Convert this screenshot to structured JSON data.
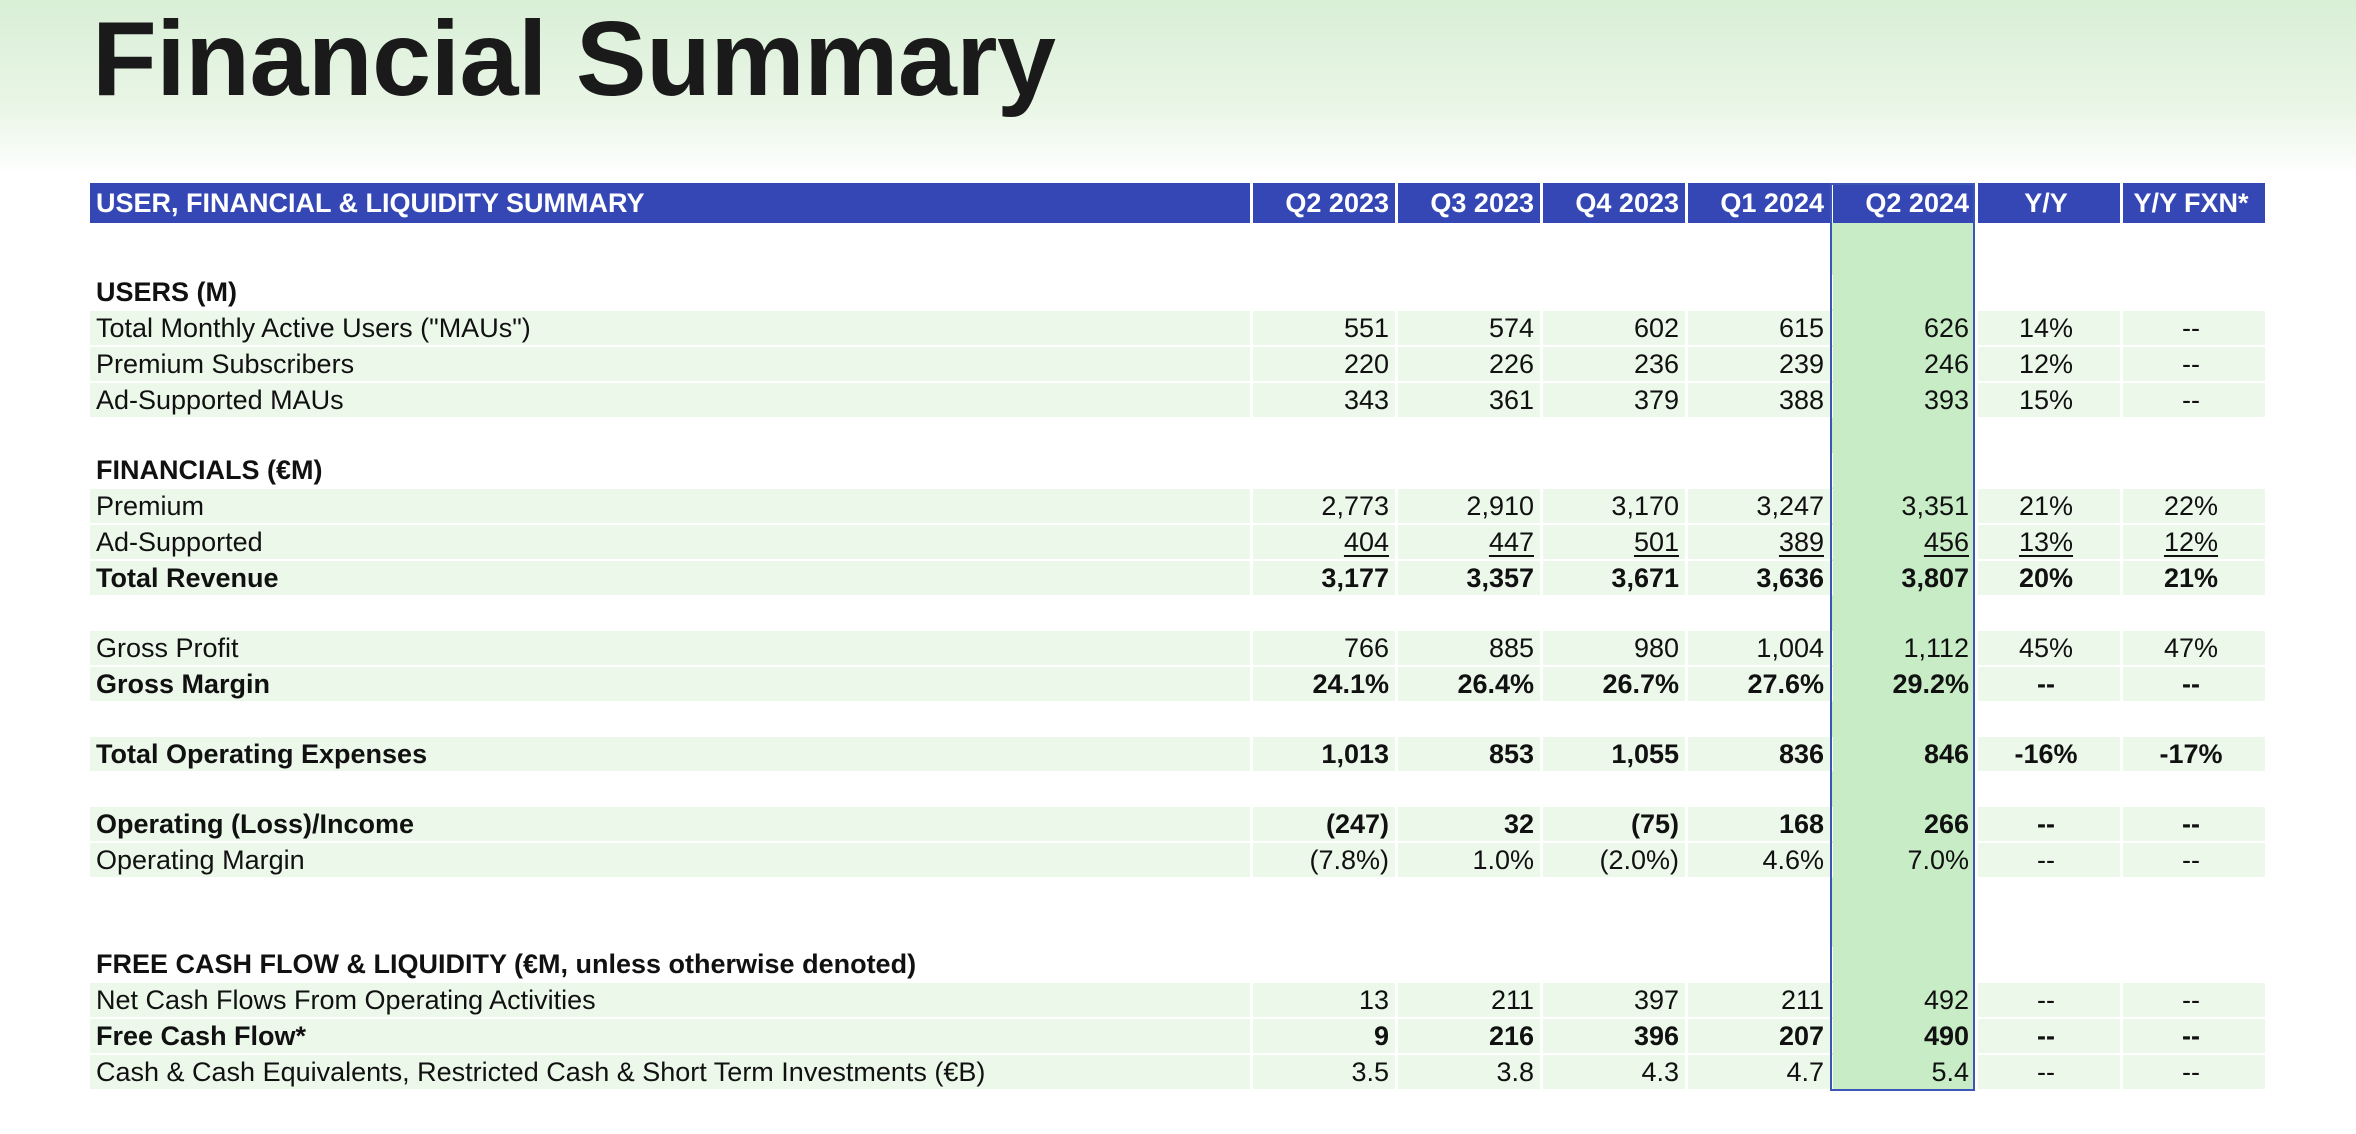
{
  "page": {
    "title": "Financial Summary"
  },
  "table": {
    "header": {
      "label": "USER, FINANCIAL & LIQUIDITY SUMMARY",
      "columns": [
        "Q2 2023",
        "Q3 2023",
        "Q4 2023",
        "Q1 2024",
        "Q2 2024",
        "Y/Y",
        "Y/Y FXN*"
      ]
    },
    "highlight_color": "#c8ecc6",
    "header_color": "#3447b5",
    "sections": [
      {
        "title": "USERS (M)",
        "rows": [
          {
            "label": "Total Monthly Active Users (\"MAUs\")",
            "values": [
              "551",
              "574",
              "602",
              "615",
              "626",
              "14%",
              "--"
            ]
          },
          {
            "label": "Premium Subscribers",
            "values": [
              "220",
              "226",
              "236",
              "239",
              "246",
              "12%",
              "--"
            ]
          },
          {
            "label": "Ad-Supported MAUs",
            "values": [
              "343",
              "361",
              "379",
              "388",
              "393",
              "15%",
              "--"
            ]
          }
        ]
      },
      {
        "title": "FINANCIALS (€M)",
        "rows": [
          {
            "label": "Premium",
            "values": [
              "2,773",
              "2,910",
              "3,170",
              "3,247",
              "3,351",
              "21%",
              "22%"
            ]
          },
          {
            "label": "Ad-Supported",
            "values": [
              "404",
              "447",
              "501",
              "389",
              "456",
              "13%",
              "12%"
            ]
          },
          {
            "label": "Total Revenue",
            "values": [
              "3,177",
              "3,357",
              "3,671",
              "3,636",
              "3,807",
              "20%",
              "21%"
            ]
          },
          {
            "label": "Gross Profit",
            "values": [
              "766",
              "885",
              "980",
              "1,004",
              "1,112",
              "45%",
              "47%"
            ]
          },
          {
            "label": "Gross Margin",
            "values": [
              "24.1%",
              "26.4%",
              "26.7%",
              "27.6%",
              "29.2%",
              "--",
              "--"
            ]
          },
          {
            "label": "Total Operating Expenses",
            "values": [
              "1,013",
              "853",
              "1,055",
              "836",
              "846",
              "-16%",
              "-17%"
            ]
          },
          {
            "label": "Operating (Loss)/Income",
            "values": [
              "(247)",
              "32",
              "(75)",
              "168",
              "266",
              "--",
              "--"
            ]
          },
          {
            "label": "Operating Margin",
            "values": [
              "(7.8%)",
              "1.0%",
              "(2.0%)",
              "4.6%",
              "7.0%",
              "--",
              "--"
            ]
          }
        ]
      },
      {
        "title": "FREE CASH FLOW & LIQUIDITY (€M, unless otherwise denoted)",
        "rows": [
          {
            "label": "Net Cash Flows From Operating Activities",
            "values": [
              "13",
              "211",
              "397",
              "211",
              "492",
              "--",
              "--"
            ]
          },
          {
            "label": "Free Cash Flow*",
            "values": [
              "9",
              "216",
              "396",
              "207",
              "490",
              "--",
              "--"
            ]
          },
          {
            "label": "Cash & Cash Equivalents, Restricted Cash & Short Term Investments (€B)",
            "values": [
              "3.5",
              "3.8",
              "4.3",
              "4.7",
              "5.4",
              "--",
              "--"
            ]
          }
        ]
      }
    ]
  }
}
